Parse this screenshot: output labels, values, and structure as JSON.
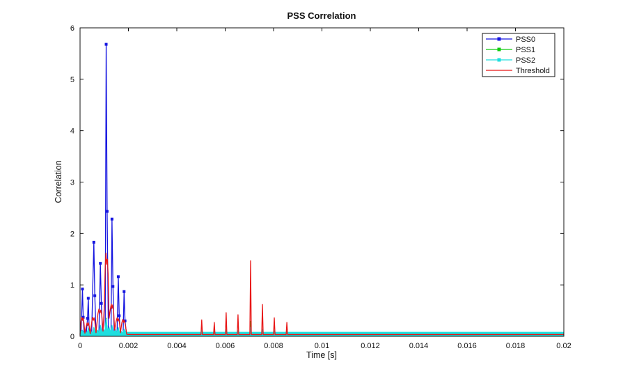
{
  "figure": {
    "title": "PSS Correlation",
    "xlabel": "Time [s]",
    "ylabel": "Correlation"
  },
  "chart_data": {
    "type": "line",
    "title": "PSS Correlation",
    "xlabel": "Time [s]",
    "ylabel": "Correlation",
    "xlim": [
      0,
      0.02
    ],
    "ylim": [
      0,
      6
    ],
    "grid": false,
    "background": "#ffffff",
    "axis_color": "#111111",
    "legend_position": "top-right",
    "x_ticks": [
      0,
      0.002,
      0.004,
      0.006,
      0.008,
      0.01,
      0.012,
      0.014,
      0.016,
      0.018,
      0.02
    ],
    "x_tick_labels": [
      "0",
      "0.002",
      "0.004",
      "0.006",
      "0.008",
      "0.01",
      "0.012",
      "0.014",
      "0.016",
      "0.018",
      "0.02"
    ],
    "y_ticks": [
      0,
      1,
      2,
      3,
      4,
      5,
      6
    ],
    "y_tick_labels": [
      "0",
      "1",
      "2",
      "3",
      "4",
      "5",
      "6"
    ],
    "series": [
      {
        "name": "PSS0",
        "color": "#1616e0",
        "marker": "square",
        "style": "line",
        "points": [
          [
            0,
            0.05
          ],
          [
            4e-05,
            0.06
          ],
          [
            0.0001,
            0.92
          ],
          [
            0.00013,
            0.37
          ],
          [
            0.00017,
            0.06
          ],
          [
            0.00026,
            0.07
          ],
          [
            0.00031,
            0.35
          ],
          [
            0.00034,
            0.74
          ],
          [
            0.00038,
            0.09
          ],
          [
            0.00048,
            0.06
          ],
          [
            0.00057,
            1.83
          ],
          [
            0.00061,
            0.79
          ],
          [
            0.00066,
            0.07
          ],
          [
            0.00078,
            0.06
          ],
          [
            0.00084,
            1.42
          ],
          [
            0.00088,
            0.64
          ],
          [
            0.00093,
            0.06
          ],
          [
            0.00104,
            0.09
          ],
          [
            0.00108,
            5.68
          ],
          [
            0.00112,
            2.43
          ],
          [
            0.00117,
            0.1
          ],
          [
            0.00128,
            0.08
          ],
          [
            0.00132,
            2.28
          ],
          [
            0.00136,
            0.97
          ],
          [
            0.00141,
            0.07
          ],
          [
            0.00153,
            0.06
          ],
          [
            0.00158,
            1.16
          ],
          [
            0.00162,
            0.4
          ],
          [
            0.00167,
            0.05
          ],
          [
            0.00178,
            0.05
          ],
          [
            0.00182,
            0.87
          ],
          [
            0.00186,
            0.3
          ],
          [
            0.00192,
            0.05
          ],
          [
            0.0021,
            0.05
          ],
          [
            0.02,
            0.05
          ]
        ],
        "marker_points": [
          [
            0.0001,
            0.92
          ],
          [
            0.00013,
            0.37
          ],
          [
            0.00031,
            0.35
          ],
          [
            0.00034,
            0.74
          ],
          [
            0.00057,
            1.83
          ],
          [
            0.00061,
            0.79
          ],
          [
            0.00084,
            1.42
          ],
          [
            0.00088,
            0.64
          ],
          [
            0.00108,
            5.68
          ],
          [
            0.00112,
            2.43
          ],
          [
            0.00132,
            2.28
          ],
          [
            0.00136,
            0.97
          ],
          [
            0.00158,
            1.16
          ],
          [
            0.00162,
            0.4
          ],
          [
            0.00182,
            0.87
          ],
          [
            0.00186,
            0.3
          ]
        ]
      },
      {
        "name": "PSS1",
        "color": "#10cc10",
        "marker": "square",
        "style": "filled",
        "points": [
          [
            0,
            0.04
          ],
          [
            0.0001,
            0.08
          ],
          [
            0.00016,
            0.04
          ],
          [
            0.00022,
            0.06
          ],
          [
            0.00028,
            0.04
          ],
          [
            0.00034,
            0.1
          ],
          [
            0.0004,
            0.04
          ],
          [
            0.00046,
            0.06
          ],
          [
            0.00052,
            0.04
          ],
          [
            0.00057,
            0.12
          ],
          [
            0.00064,
            0.04
          ],
          [
            0.00072,
            0.08
          ],
          [
            0.00078,
            0.04
          ],
          [
            0.00084,
            0.16
          ],
          [
            0.0009,
            0.05
          ],
          [
            0.00096,
            0.09
          ],
          [
            0.00102,
            0.06
          ],
          [
            0.00108,
            0.36
          ],
          [
            0.00114,
            0.08
          ],
          [
            0.0012,
            0.12
          ],
          [
            0.00126,
            0.05
          ],
          [
            0.00132,
            0.16
          ],
          [
            0.00138,
            0.05
          ],
          [
            0.00146,
            0.09
          ],
          [
            0.00152,
            0.04
          ],
          [
            0.00158,
            0.12
          ],
          [
            0.00164,
            0.04
          ],
          [
            0.0017,
            0.07
          ],
          [
            0.00176,
            0.04
          ],
          [
            0.00182,
            0.09
          ],
          [
            0.0019,
            0.04
          ],
          [
            0.0025,
            0.04
          ],
          [
            0.005,
            0.04
          ],
          [
            0.00503,
            0.07
          ],
          [
            0.00506,
            0.04
          ],
          [
            0.00552,
            0.04
          ],
          [
            0.00555,
            0.05
          ],
          [
            0.00558,
            0.04
          ],
          [
            0.00601,
            0.04
          ],
          [
            0.00604,
            0.09
          ],
          [
            0.00607,
            0.04
          ],
          [
            0.0065,
            0.04
          ],
          [
            0.00653,
            0.08
          ],
          [
            0.00656,
            0.04
          ],
          [
            0.00702,
            0.04
          ],
          [
            0.00705,
            0.3
          ],
          [
            0.00708,
            0.04
          ],
          [
            0.00751,
            0.04
          ],
          [
            0.00754,
            0.11
          ],
          [
            0.00757,
            0.04
          ],
          [
            0.008,
            0.04
          ],
          [
            0.00803,
            0.07
          ],
          [
            0.00806,
            0.04
          ],
          [
            0.00852,
            0.04
          ],
          [
            0.00855,
            0.05
          ],
          [
            0.00858,
            0.04
          ],
          [
            0.02,
            0.04
          ]
        ]
      },
      {
        "name": "PSS2",
        "color": "#1edede",
        "marker": "square",
        "style": "filled",
        "points": [
          [
            0,
            0.08
          ],
          [
            0.0001,
            0.12
          ],
          [
            0.00016,
            0.06
          ],
          [
            0.00022,
            0.09
          ],
          [
            0.00028,
            0.06
          ],
          [
            0.00034,
            0.15
          ],
          [
            0.0004,
            0.06
          ],
          [
            0.00046,
            0.09
          ],
          [
            0.00052,
            0.07
          ],
          [
            0.00057,
            0.18
          ],
          [
            0.00064,
            0.07
          ],
          [
            0.00072,
            0.12
          ],
          [
            0.00078,
            0.08
          ],
          [
            0.00084,
            0.22
          ],
          [
            0.0009,
            0.08
          ],
          [
            0.00096,
            0.14
          ],
          [
            0.00102,
            0.09
          ],
          [
            0.00108,
            0.34
          ],
          [
            0.00114,
            0.11
          ],
          [
            0.0012,
            0.18
          ],
          [
            0.00126,
            0.08
          ],
          [
            0.00132,
            0.22
          ],
          [
            0.00138,
            0.08
          ],
          [
            0.00146,
            0.14
          ],
          [
            0.00152,
            0.07
          ],
          [
            0.00158,
            0.18
          ],
          [
            0.00164,
            0.06
          ],
          [
            0.0017,
            0.1
          ],
          [
            0.00176,
            0.06
          ],
          [
            0.00182,
            0.14
          ],
          [
            0.0019,
            0.08
          ],
          [
            0.0025,
            0.08
          ],
          [
            0.005,
            0.08
          ],
          [
            0.00503,
            0.11
          ],
          [
            0.00506,
            0.08
          ],
          [
            0.00552,
            0.08
          ],
          [
            0.00555,
            0.09
          ],
          [
            0.00558,
            0.08
          ],
          [
            0.00601,
            0.08
          ],
          [
            0.00604,
            0.12
          ],
          [
            0.00607,
            0.08
          ],
          [
            0.0065,
            0.08
          ],
          [
            0.00653,
            0.11
          ],
          [
            0.00656,
            0.08
          ],
          [
            0.00702,
            0.08
          ],
          [
            0.00705,
            0.18
          ],
          [
            0.00708,
            0.08
          ],
          [
            0.00751,
            0.08
          ],
          [
            0.00754,
            0.14
          ],
          [
            0.00757,
            0.08
          ],
          [
            0.008,
            0.08
          ],
          [
            0.00803,
            0.11
          ],
          [
            0.00806,
            0.08
          ],
          [
            0.00852,
            0.08
          ],
          [
            0.00855,
            0.09
          ],
          [
            0.00858,
            0.08
          ],
          [
            0.02,
            0.08
          ]
        ]
      },
      {
        "name": "Threshold",
        "color": "#e81616",
        "marker": "none",
        "style": "line",
        "points": [
          [
            0,
            0.035
          ],
          [
            4e-05,
            0.3
          ],
          [
            7e-05,
            0.37
          ],
          [
            0.0001,
            0.31
          ],
          [
            0.00013,
            0.36
          ],
          [
            0.00016,
            0.27
          ],
          [
            0.0002,
            0.06
          ],
          [
            0.00026,
            0.21
          ],
          [
            0.00029,
            0.26
          ],
          [
            0.00032,
            0.21
          ],
          [
            0.00035,
            0.26
          ],
          [
            0.00038,
            0.19
          ],
          [
            0.00042,
            0.05
          ],
          [
            0.00049,
            0.3
          ],
          [
            0.00052,
            0.37
          ],
          [
            0.00055,
            0.31
          ],
          [
            0.00058,
            0.36
          ],
          [
            0.00061,
            0.29
          ],
          [
            0.00066,
            0.07
          ],
          [
            0.00074,
            0.44
          ],
          [
            0.00078,
            0.53
          ],
          [
            0.00082,
            0.45
          ],
          [
            0.00086,
            0.51
          ],
          [
            0.0009,
            0.41
          ],
          [
            0.00095,
            0.1
          ],
          [
            0.001,
            0.55
          ],
          [
            0.00104,
            1.35
          ],
          [
            0.00107,
            1.62
          ],
          [
            0.0011,
            1.4
          ],
          [
            0.00113,
            1.5
          ],
          [
            0.00116,
            1.22
          ],
          [
            0.0012,
            0.35
          ],
          [
            0.00125,
            0.52
          ],
          [
            0.00129,
            0.63
          ],
          [
            0.00132,
            0.54
          ],
          [
            0.00135,
            0.61
          ],
          [
            0.00139,
            0.48
          ],
          [
            0.00143,
            0.12
          ],
          [
            0.00149,
            0.29
          ],
          [
            0.00153,
            0.36
          ],
          [
            0.00156,
            0.3
          ],
          [
            0.00159,
            0.34
          ],
          [
            0.00163,
            0.27
          ],
          [
            0.00167,
            0.07
          ],
          [
            0.00173,
            0.27
          ],
          [
            0.00177,
            0.33
          ],
          [
            0.0018,
            0.27
          ],
          [
            0.00183,
            0.31
          ],
          [
            0.00187,
            0.23
          ],
          [
            0.00193,
            0.04
          ],
          [
            0.0021,
            0.035
          ],
          [
            0.0049,
            0.035
          ],
          [
            0.005,
            0.035
          ],
          [
            0.00503,
            0.32
          ],
          [
            0.00506,
            0.035
          ],
          [
            0.00552,
            0.035
          ],
          [
            0.00555,
            0.27
          ],
          [
            0.00558,
            0.035
          ],
          [
            0.00601,
            0.035
          ],
          [
            0.00604,
            0.46
          ],
          [
            0.00607,
            0.035
          ],
          [
            0.0065,
            0.035
          ],
          [
            0.00653,
            0.42
          ],
          [
            0.00656,
            0.035
          ],
          [
            0.00702,
            0.035
          ],
          [
            0.00705,
            1.47
          ],
          [
            0.00708,
            0.035
          ],
          [
            0.00751,
            0.035
          ],
          [
            0.00754,
            0.62
          ],
          [
            0.00757,
            0.035
          ],
          [
            0.008,
            0.035
          ],
          [
            0.00803,
            0.36
          ],
          [
            0.00806,
            0.035
          ],
          [
            0.00852,
            0.035
          ],
          [
            0.00855,
            0.27
          ],
          [
            0.00858,
            0.035
          ],
          [
            0.02,
            0.035
          ]
        ]
      }
    ]
  }
}
